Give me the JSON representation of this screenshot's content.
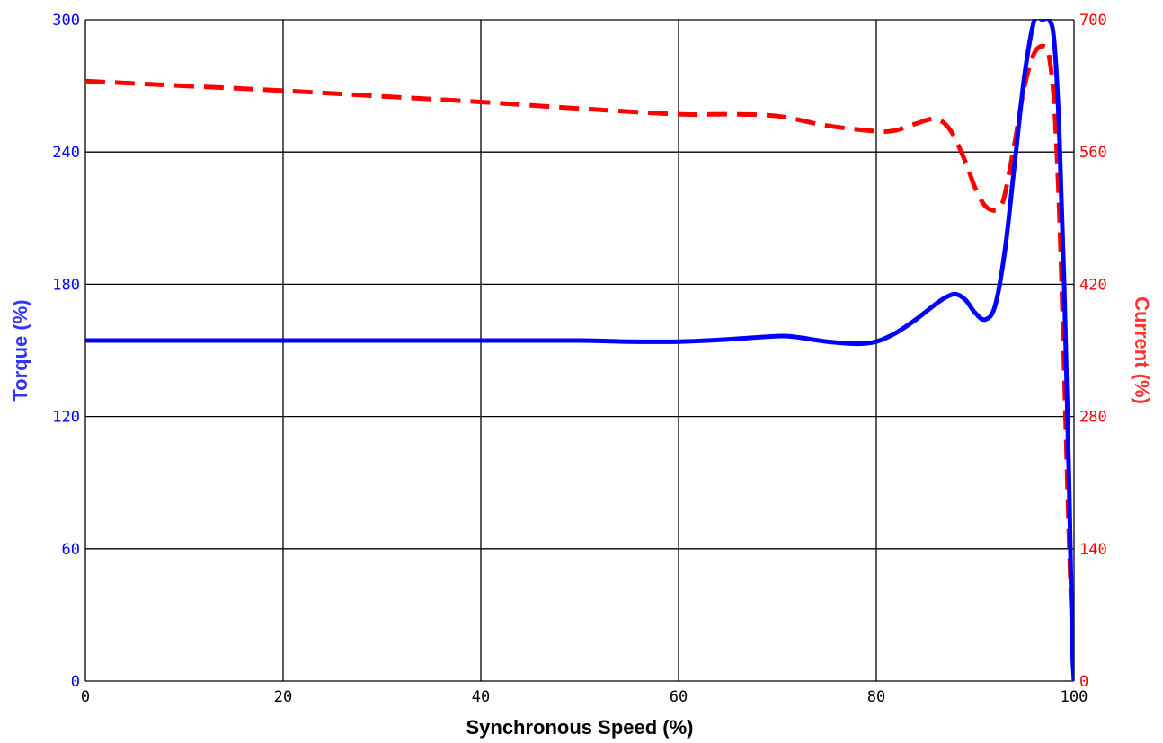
{
  "chart_data": {
    "type": "line",
    "xlabel": "Synchronous Speed (%)",
    "ylabel_left": "Torque (%)",
    "ylabel_right": "Current (%)",
    "xlim": [
      0,
      100
    ],
    "ylim_left": [
      0,
      300
    ],
    "ylim_right": [
      0,
      700
    ],
    "x_ticks": [
      "0",
      "20",
      "40",
      "60",
      "80",
      "100"
    ],
    "y_left_ticks": [
      "0",
      "60",
      "120",
      "180",
      "240",
      "300"
    ],
    "y_right_ticks": [
      "0",
      "140",
      "280",
      "420",
      "560",
      "700"
    ],
    "grid": true,
    "colors": {
      "torque": "#0000ff",
      "current": "#ff0000",
      "axis": "#000000",
      "left_ticks": "#0000ff",
      "right_ticks": "#ff0000"
    },
    "series": [
      {
        "axis": "left",
        "style": "solid",
        "x": [
          0,
          10,
          20,
          30,
          40,
          50,
          55,
          60,
          65,
          70,
          72,
          75,
          78,
          80,
          82,
          84,
          86,
          87,
          88,
          89,
          90,
          91,
          92,
          93,
          94,
          95,
          96,
          96.8,
          97.5,
          98,
          98.5,
          99,
          99.5,
          99.8,
          100
        ],
        "y": [
          154.5,
          154.5,
          154.5,
          154.5,
          154.5,
          154.5,
          154,
          154,
          155,
          156.5,
          156,
          154,
          153,
          154,
          158,
          164,
          171,
          174,
          175.5,
          173,
          167,
          164,
          170,
          195,
          235,
          275,
          300,
          300,
          300,
          290,
          250,
          180,
          90,
          20,
          0
        ]
      },
      {
        "axis": "right",
        "style": "dashed",
        "x": [
          0,
          10,
          20,
          30,
          40,
          50,
          60,
          65,
          70,
          75,
          80,
          82,
          84,
          86,
          87.5,
          89,
          90,
          91,
          92,
          92.5,
          93,
          94,
          95,
          96,
          97,
          97.5,
          98,
          98.5,
          99,
          99.5,
          100
        ],
        "y": [
          635,
          630,
          625,
          619,
          613,
          606,
          600,
          600,
          598,
          588,
          582,
          583,
          590,
          595,
          583,
          550,
          522,
          503,
          498,
          502,
          515,
          570,
          630,
          665,
          672,
          660,
          610,
          500,
          330,
          150,
          0
        ]
      }
    ]
  }
}
